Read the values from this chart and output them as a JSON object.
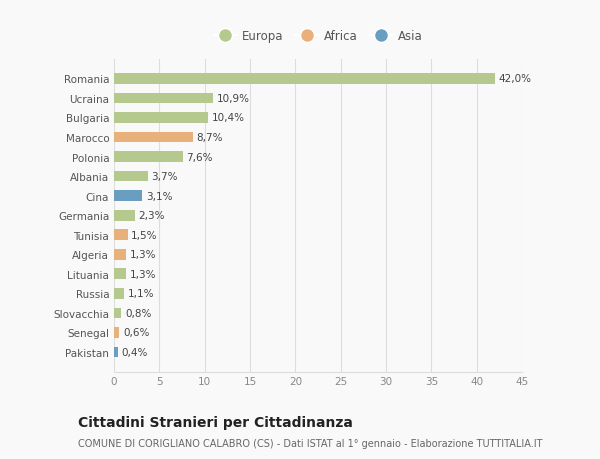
{
  "countries": [
    "Romania",
    "Ucraina",
    "Bulgaria",
    "Marocco",
    "Polonia",
    "Albania",
    "Cina",
    "Germania",
    "Tunisia",
    "Algeria",
    "Lituania",
    "Russia",
    "Slovacchia",
    "Senegal",
    "Pakistan"
  ],
  "values": [
    42.0,
    10.9,
    10.4,
    8.7,
    7.6,
    3.7,
    3.1,
    2.3,
    1.5,
    1.3,
    1.3,
    1.1,
    0.8,
    0.6,
    0.4
  ],
  "labels": [
    "42,0%",
    "10,9%",
    "10,4%",
    "8,7%",
    "7,6%",
    "3,7%",
    "3,1%",
    "2,3%",
    "1,5%",
    "1,3%",
    "1,3%",
    "1,1%",
    "0,8%",
    "0,6%",
    "0,4%"
  ],
  "continents": [
    "Europa",
    "Europa",
    "Europa",
    "Africa",
    "Europa",
    "Europa",
    "Asia",
    "Europa",
    "Africa",
    "Africa",
    "Europa",
    "Europa",
    "Europa",
    "Africa",
    "Asia"
  ],
  "colors": {
    "Europa": "#b5c98e",
    "Africa": "#e8b07a",
    "Asia": "#6a9ec0"
  },
  "legend_labels": [
    "Europa",
    "Africa",
    "Asia"
  ],
  "legend_colors": [
    "#b5c98e",
    "#e8b07a",
    "#6a9ec0"
  ],
  "xlim": [
    0,
    45
  ],
  "xticks": [
    0,
    5,
    10,
    15,
    20,
    25,
    30,
    35,
    40,
    45
  ],
  "title": "Cittadini Stranieri per Cittadinanza",
  "subtitle": "COMUNE DI CORIGLIANO CALABRO (CS) - Dati ISTAT al 1° gennaio - Elaborazione TUTTITALIA.IT",
  "background_color": "#f9f9f9",
  "grid_color": "#dddddd",
  "bar_height": 0.55,
  "label_fontsize": 7.5,
  "tick_fontsize": 7.5,
  "title_fontsize": 10,
  "subtitle_fontsize": 7
}
